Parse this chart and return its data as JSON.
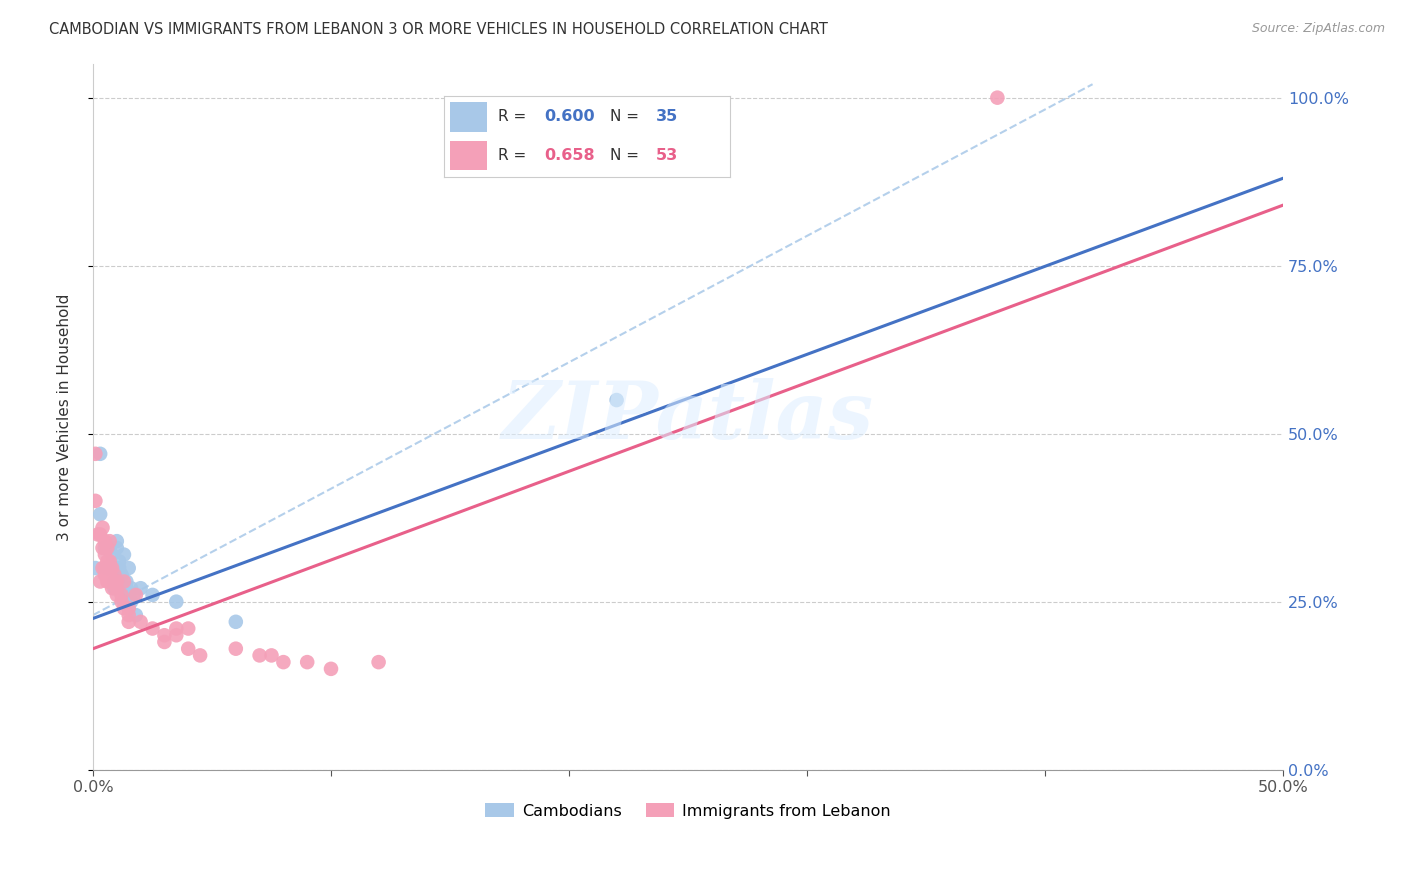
{
  "title": "CAMBODIAN VS IMMIGRANTS FROM LEBANON 3 OR MORE VEHICLES IN HOUSEHOLD CORRELATION CHART",
  "source": "Source: ZipAtlas.com",
  "ylabel": "3 or more Vehicles in Household",
  "xlim": [
    0.0,
    0.5
  ],
  "ylim": [
    0.0,
    1.05
  ],
  "yticks": [
    0.0,
    0.25,
    0.5,
    0.75,
    1.0
  ],
  "ytick_labels": [
    "0.0%",
    "25.0%",
    "50.0%",
    "75.0%",
    "100.0%"
  ],
  "xticks": [
    0.0,
    0.1,
    0.2,
    0.3,
    0.4,
    0.5
  ],
  "xtick_labels": [
    "0.0%",
    "",
    "",
    "",
    "",
    "50.0%"
  ],
  "cambodian_color": "#a8c8e8",
  "lebanon_color": "#f4a0b8",
  "blue_line_color": "#4472c4",
  "pink_line_color": "#e8608a",
  "dashed_line_color": "#a8c8e8",
  "legend_blue_color": "#4472c4",
  "legend_pink_color": "#e8608a",
  "watermark": "ZIPatlas",
  "blue_line": {
    "x0": 0.0,
    "y0": 0.225,
    "x1": 0.5,
    "y1": 0.88
  },
  "pink_line": {
    "x0": 0.0,
    "y0": 0.18,
    "x1": 0.5,
    "y1": 0.84
  },
  "dash_line": {
    "x0": 0.0,
    "y0": 0.23,
    "x1": 0.42,
    "y1": 1.02
  },
  "cambodian_points": [
    [
      0.003,
      0.47
    ],
    [
      0.001,
      0.3
    ],
    [
      0.003,
      0.38
    ],
    [
      0.005,
      0.33
    ],
    [
      0.006,
      0.3
    ],
    [
      0.007,
      0.33
    ],
    [
      0.008,
      0.3
    ],
    [
      0.008,
      0.32
    ],
    [
      0.009,
      0.27
    ],
    [
      0.009,
      0.28
    ],
    [
      0.01,
      0.3
    ],
    [
      0.01,
      0.28
    ],
    [
      0.01,
      0.33
    ],
    [
      0.01,
      0.34
    ],
    [
      0.011,
      0.31
    ],
    [
      0.011,
      0.3
    ],
    [
      0.012,
      0.29
    ],
    [
      0.012,
      0.27
    ],
    [
      0.013,
      0.32
    ],
    [
      0.013,
      0.27
    ],
    [
      0.013,
      0.25
    ],
    [
      0.014,
      0.28
    ],
    [
      0.014,
      0.27
    ],
    [
      0.015,
      0.3
    ],
    [
      0.015,
      0.26
    ],
    [
      0.015,
      0.25
    ],
    [
      0.016,
      0.27
    ],
    [
      0.016,
      0.25
    ],
    [
      0.017,
      0.26
    ],
    [
      0.018,
      0.23
    ],
    [
      0.02,
      0.27
    ],
    [
      0.025,
      0.26
    ],
    [
      0.035,
      0.25
    ],
    [
      0.06,
      0.22
    ],
    [
      0.22,
      0.55
    ]
  ],
  "lebanon_points": [
    [
      0.001,
      0.47
    ],
    [
      0.001,
      0.4
    ],
    [
      0.002,
      0.35
    ],
    [
      0.003,
      0.28
    ],
    [
      0.003,
      0.35
    ],
    [
      0.004,
      0.33
    ],
    [
      0.004,
      0.3
    ],
    [
      0.004,
      0.36
    ],
    [
      0.005,
      0.32
    ],
    [
      0.005,
      0.34
    ],
    [
      0.005,
      0.3
    ],
    [
      0.005,
      0.29
    ],
    [
      0.006,
      0.31
    ],
    [
      0.006,
      0.33
    ],
    [
      0.006,
      0.3
    ],
    [
      0.006,
      0.28
    ],
    [
      0.007,
      0.3
    ],
    [
      0.007,
      0.29
    ],
    [
      0.007,
      0.31
    ],
    [
      0.007,
      0.34
    ],
    [
      0.008,
      0.27
    ],
    [
      0.008,
      0.3
    ],
    [
      0.008,
      0.28
    ],
    [
      0.009,
      0.28
    ],
    [
      0.009,
      0.29
    ],
    [
      0.01,
      0.27
    ],
    [
      0.01,
      0.26
    ],
    [
      0.01,
      0.28
    ],
    [
      0.012,
      0.26
    ],
    [
      0.012,
      0.25
    ],
    [
      0.013,
      0.28
    ],
    [
      0.013,
      0.24
    ],
    [
      0.015,
      0.24
    ],
    [
      0.015,
      0.22
    ],
    [
      0.015,
      0.23
    ],
    [
      0.018,
      0.26
    ],
    [
      0.02,
      0.22
    ],
    [
      0.025,
      0.21
    ],
    [
      0.03,
      0.2
    ],
    [
      0.03,
      0.19
    ],
    [
      0.035,
      0.21
    ],
    [
      0.035,
      0.2
    ],
    [
      0.04,
      0.21
    ],
    [
      0.04,
      0.18
    ],
    [
      0.045,
      0.17
    ],
    [
      0.06,
      0.18
    ],
    [
      0.07,
      0.17
    ],
    [
      0.075,
      0.17
    ],
    [
      0.08,
      0.16
    ],
    [
      0.09,
      0.16
    ],
    [
      0.1,
      0.15
    ],
    [
      0.12,
      0.16
    ],
    [
      0.38,
      1.0
    ]
  ]
}
